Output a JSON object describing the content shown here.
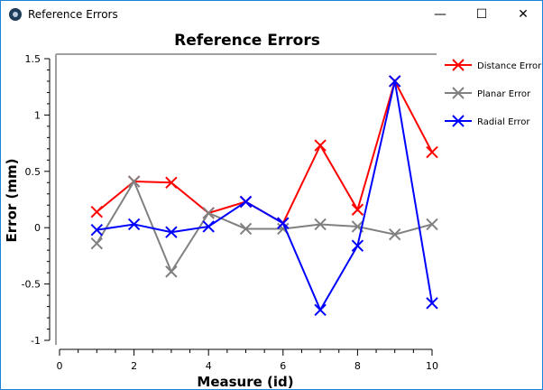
{
  "window": {
    "title": "Reference Errors",
    "icons": [
      "app-icon",
      "minimize-icon",
      "maximize-icon",
      "close-icon"
    ]
  },
  "chart_data": {
    "type": "line",
    "title": "Reference Errors",
    "xlabel": "Measure (id)",
    "ylabel": "Error (mm)",
    "xlim": [
      0,
      10
    ],
    "ylim": [
      -1,
      1.5
    ],
    "xticks": [
      "0",
      "2",
      "4",
      "6",
      "8",
      "10"
    ],
    "yticks": [
      "1.5",
      "1",
      "0.5",
      "0",
      "-0.5",
      "-1"
    ],
    "grid": false,
    "legend_placement": "right",
    "marker": "x",
    "x": [
      1,
      2,
      3,
      4,
      5,
      6,
      7,
      8,
      9,
      10
    ],
    "series": [
      {
        "name": "Distance Error",
        "color": "#ff0000",
        "values": [
          0.14,
          0.41,
          0.4,
          0.13,
          0.23,
          0.04,
          0.73,
          0.16,
          1.3,
          0.67
        ]
      },
      {
        "name": "Planar Error",
        "color": "#808080",
        "values": [
          -0.14,
          0.41,
          -0.39,
          0.13,
          -0.01,
          -0.01,
          0.03,
          0.01,
          -0.06,
          0.03
        ]
      },
      {
        "name": "Radial Error",
        "color": "#0000ff",
        "values": [
          -0.02,
          0.03,
          -0.04,
          0.01,
          0.23,
          0.04,
          -0.73,
          -0.16,
          1.3,
          -0.67
        ]
      }
    ]
  }
}
